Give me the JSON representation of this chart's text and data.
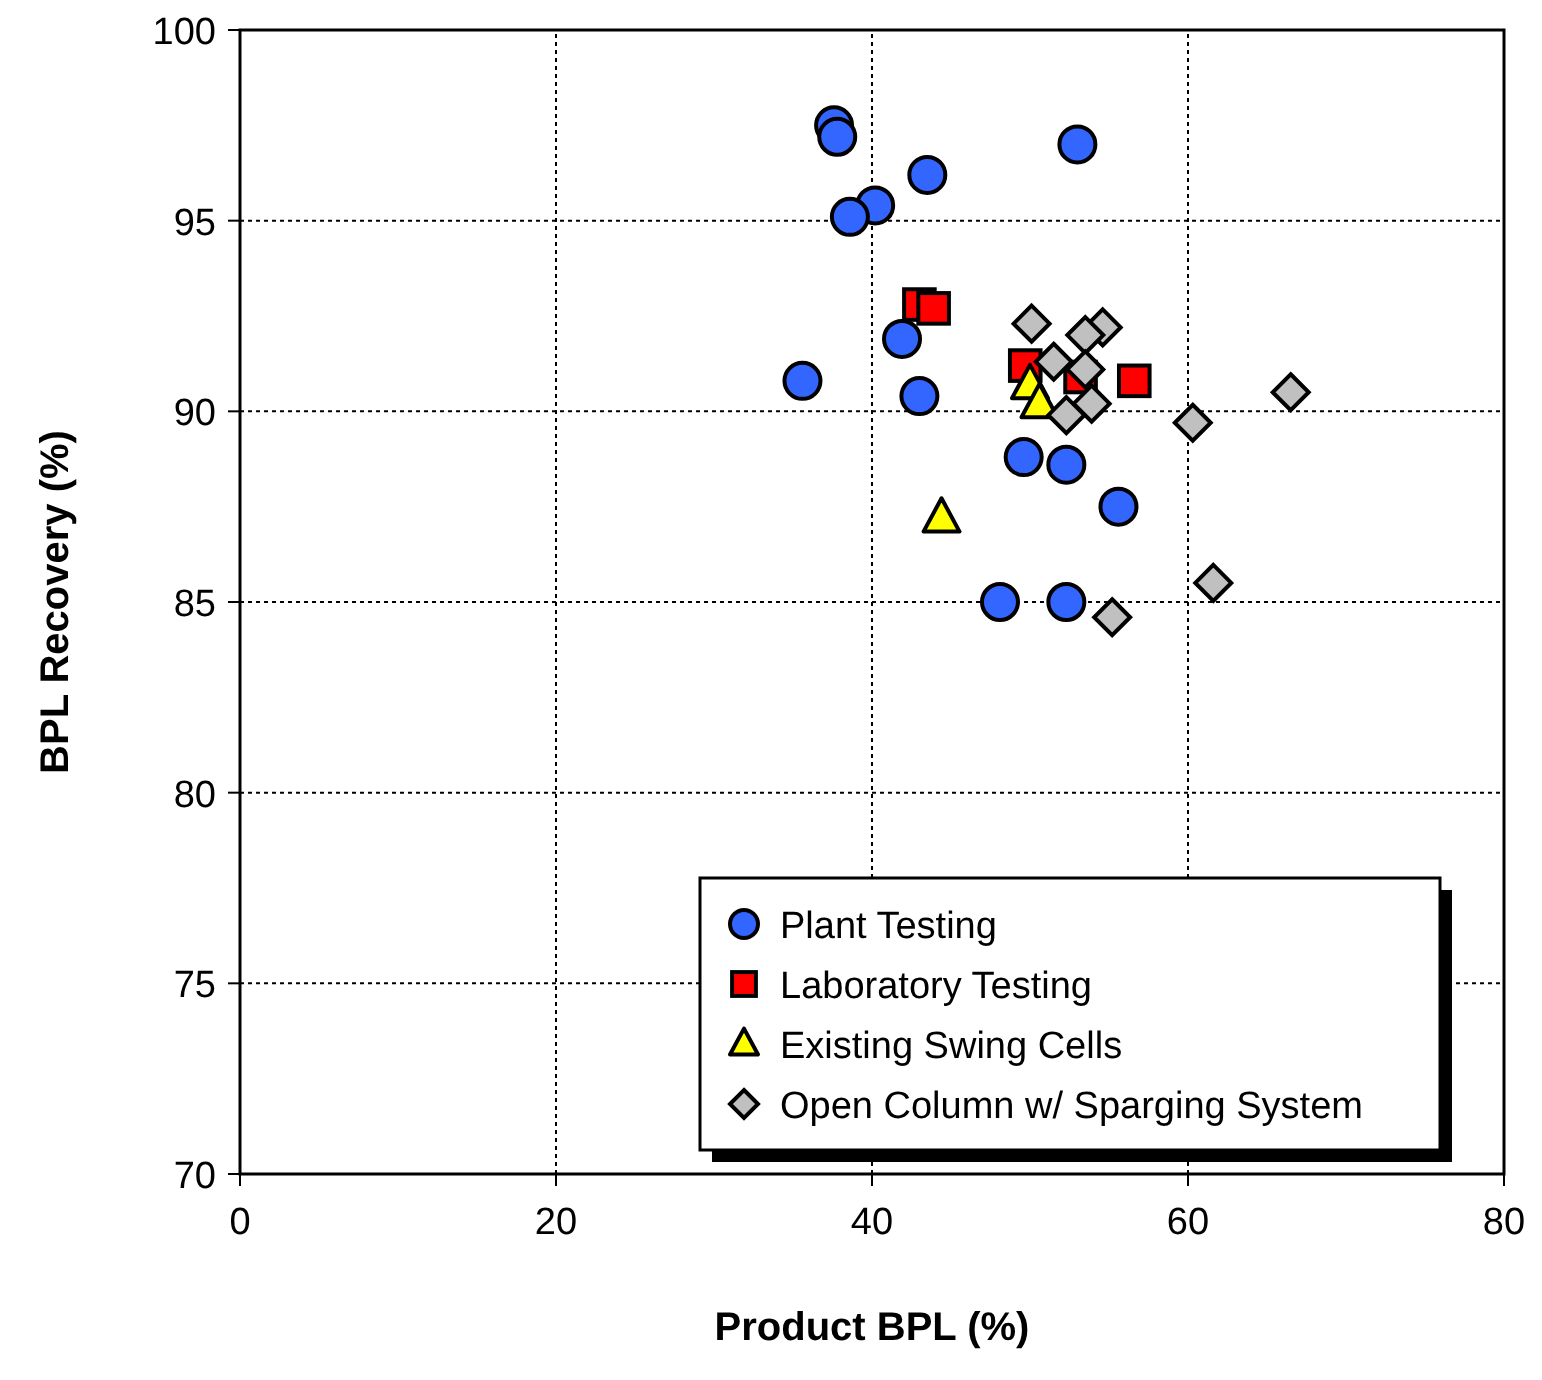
{
  "chart_data": {
    "type": "scatter",
    "xlabel": "Product BPL (%)",
    "ylabel": "BPL Recovery (%)",
    "xlim": [
      0,
      80
    ],
    "ylim": [
      70,
      100
    ],
    "xticks": [
      0,
      20,
      40,
      60,
      80
    ],
    "yticks": [
      70,
      75,
      80,
      85,
      90,
      95,
      100
    ],
    "grid": true,
    "legend": "bottom right",
    "series": [
      {
        "name": "Plant Testing",
        "color": "#3366ff",
        "marker": "circle",
        "x": [
          37.6,
          37.8,
          53.0,
          43.5,
          40.2,
          38.6,
          35.6,
          41.9,
          43.0,
          49.6,
          52.3,
          55.6,
          48.1,
          52.3
        ],
        "values": [
          97.5,
          97.2,
          97.0,
          96.2,
          95.4,
          95.1,
          90.8,
          91.9,
          90.4,
          88.8,
          88.6,
          87.5,
          85.0,
          85.0
        ]
      },
      {
        "name": "Laboratory Testing",
        "color": "#ff0000",
        "marker": "square",
        "x": [
          43.0,
          43.9,
          49.7,
          56.6,
          53.2
        ],
        "values": [
          92.8,
          92.7,
          91.2,
          90.8,
          90.9
        ]
      },
      {
        "name": "Existing Swing Cells",
        "color": "#ffff00",
        "marker": "triangle",
        "x": [
          50.0,
          50.6,
          44.4
        ],
        "values": [
          90.7,
          90.2,
          87.2
        ]
      },
      {
        "name": "Open Column w/ Sparging System",
        "color": "#c0c0c0",
        "marker": "diamond",
        "x": [
          50.1,
          54.6,
          53.5,
          51.5,
          53.5,
          53.9,
          52.3,
          60.3,
          66.5,
          61.6,
          55.2
        ],
        "values": [
          92.3,
          92.2,
          92.0,
          91.3,
          91.1,
          90.2,
          89.9,
          89.7,
          90.5,
          85.5,
          84.6
        ]
      }
    ]
  }
}
